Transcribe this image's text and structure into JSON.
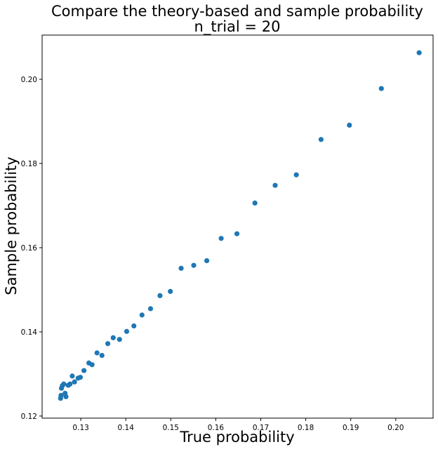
{
  "chart_data": {
    "type": "scatter",
    "title": "Compare the theory-based and sample probability",
    "subtitle": "n_trial = 20",
    "xlabel": "True probability",
    "ylabel": "Sample probability",
    "xlim": [
      0.1214,
      0.2083
    ],
    "ylim": [
      0.1195,
      0.2105
    ],
    "xticks": [
      "0.13",
      "0.14",
      "0.15",
      "0.16",
      "0.17",
      "0.18",
      "0.19",
      "0.20"
    ],
    "yticks": [
      "0.12",
      "0.14",
      "0.16",
      "0.18",
      "0.20"
    ],
    "grid": false,
    "marker_color": "#1f77b4",
    "series": [
      {
        "points": [
          [
            0.2052,
            0.2063
          ],
          [
            0.1968,
            0.1978
          ],
          [
            0.1897,
            0.1891
          ],
          [
            0.1834,
            0.1857
          ],
          [
            0.1779,
            0.1773
          ],
          [
            0.1732,
            0.1748
          ],
          [
            0.1687,
            0.1706
          ],
          [
            0.1647,
            0.1633
          ],
          [
            0.1612,
            0.1622
          ],
          [
            0.158,
            0.1569
          ],
          [
            0.1551,
            0.1558
          ],
          [
            0.1523,
            0.1551
          ],
          [
            0.1499,
            0.1496
          ],
          [
            0.1476,
            0.1486
          ],
          [
            0.1455,
            0.1455
          ],
          [
            0.1436,
            0.144
          ],
          [
            0.1418,
            0.1414
          ],
          [
            0.1402,
            0.1401
          ],
          [
            0.1386,
            0.1382
          ],
          [
            0.1372,
            0.1386
          ],
          [
            0.136,
            0.1372
          ],
          [
            0.1347,
            0.1344
          ],
          [
            0.1336,
            0.135
          ],
          [
            0.1325,
            0.1322
          ],
          [
            0.1318,
            0.1326
          ],
          [
            0.1307,
            0.1308
          ],
          [
            0.1299,
            0.1292
          ],
          [
            0.1294,
            0.129
          ],
          [
            0.1286,
            0.1281
          ],
          [
            0.1281,
            0.1295
          ],
          [
            0.1276,
            0.1276
          ],
          [
            0.1272,
            0.1273
          ],
          [
            0.1267,
            0.1246
          ],
          [
            0.1265,
            0.1254
          ],
          [
            0.1262,
            0.1276
          ],
          [
            0.1259,
            0.1272
          ],
          [
            0.1257,
            0.1266
          ],
          [
            0.1256,
            0.1249
          ],
          [
            0.1255,
            0.1242
          ]
        ]
      }
    ]
  }
}
